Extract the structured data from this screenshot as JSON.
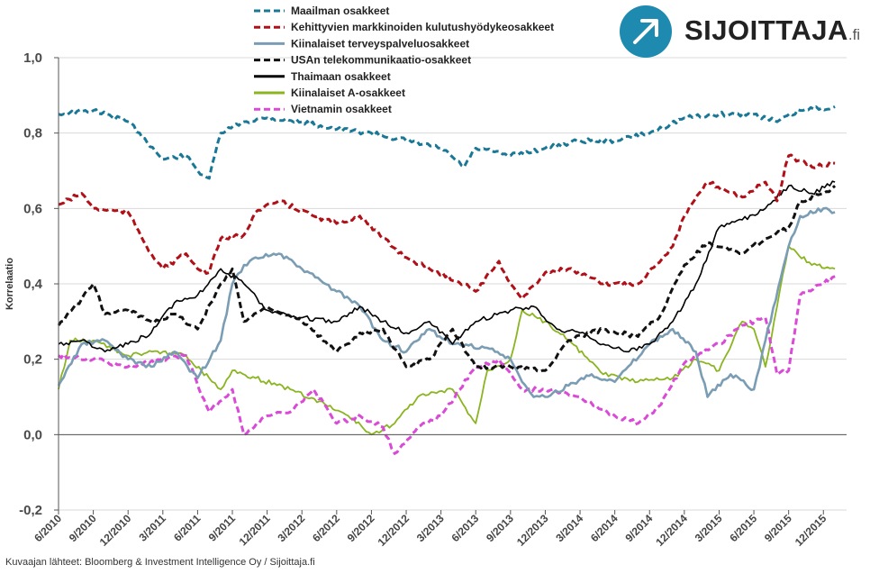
{
  "logo": {
    "name": "SIJOITTAJA",
    "suffix": ".fi",
    "icon": "arrow-up-right-icon"
  },
  "source": "Kuvaajan lähteet: Bloomberg & Investment Intelligence Oy / Sijoittaja.fi",
  "chart_data": {
    "type": "line",
    "ylabel": "Korrelaatio",
    "ylim": [
      -0.2,
      1.0
    ],
    "yticks": [
      "1,0",
      "0,8",
      "0,6",
      "0,4",
      "0,2",
      "0,0",
      "-0,2"
    ],
    "ytick_values": [
      1.0,
      0.8,
      0.6,
      0.4,
      0.2,
      0.0,
      -0.2
    ],
    "xlim": [
      "2010-06",
      "2016-02"
    ],
    "xticks": [
      "6/2010",
      "9/2010",
      "12/2010",
      "3/2011",
      "6/2011",
      "9/2011",
      "12/2011",
      "3/2012",
      "6/2012",
      "9/2012",
      "12/2012",
      "3/2013",
      "6/2013",
      "9/2013",
      "12/2013",
      "3/2014",
      "6/2014",
      "9/2014",
      "12/2014",
      "3/2015",
      "6/2015",
      "9/2015",
      "12/2015"
    ],
    "grid": "horizontal",
    "legend_position": "top-center",
    "series": [
      {
        "name": "Maailman osakkeet",
        "color": "#1a7896",
        "dash": "dashed",
        "width": 3.0,
        "points": [
          [
            "2010-06",
            0.85
          ],
          [
            "2010-09",
            0.86
          ],
          [
            "2010-12",
            0.83
          ],
          [
            "2011-01",
            0.8
          ],
          [
            "2011-03",
            0.73
          ],
          [
            "2011-05",
            0.74
          ],
          [
            "2011-06",
            0.7
          ],
          [
            "2011-07",
            0.68
          ],
          [
            "2011-08",
            0.8
          ],
          [
            "2011-10",
            0.83
          ],
          [
            "2011-12",
            0.84
          ],
          [
            "2012-03",
            0.83
          ],
          [
            "2012-06",
            0.81
          ],
          [
            "2012-09",
            0.8
          ],
          [
            "2012-12",
            0.78
          ],
          [
            "2013-03",
            0.76
          ],
          [
            "2013-05",
            0.71
          ],
          [
            "2013-06",
            0.76
          ],
          [
            "2013-09",
            0.74
          ],
          [
            "2013-12",
            0.76
          ],
          [
            "2014-03",
            0.78
          ],
          [
            "2014-06",
            0.78
          ],
          [
            "2014-09",
            0.8
          ],
          [
            "2014-12",
            0.84
          ],
          [
            "2015-03",
            0.85
          ],
          [
            "2015-06",
            0.85
          ],
          [
            "2015-08",
            0.83
          ],
          [
            "2015-10",
            0.86
          ],
          [
            "2016-01",
            0.87
          ]
        ]
      },
      {
        "name": "Kehittyvien markkinoiden kulutushyödykeosakkeet",
        "color": "#b01018",
        "dash": "dashed",
        "width": 3.0,
        "points": [
          [
            "2010-06",
            0.61
          ],
          [
            "2010-08",
            0.64
          ],
          [
            "2010-09",
            0.6
          ],
          [
            "2010-12",
            0.59
          ],
          [
            "2011-02",
            0.48
          ],
          [
            "2011-03",
            0.44
          ],
          [
            "2011-05",
            0.48
          ],
          [
            "2011-06",
            0.44
          ],
          [
            "2011-07",
            0.43
          ],
          [
            "2011-08",
            0.52
          ],
          [
            "2011-10",
            0.53
          ],
          [
            "2011-11",
            0.59
          ],
          [
            "2012-01",
            0.62
          ],
          [
            "2012-04",
            0.58
          ],
          [
            "2012-06",
            0.56
          ],
          [
            "2012-08",
            0.58
          ],
          [
            "2012-10",
            0.52
          ],
          [
            "2012-12",
            0.47
          ],
          [
            "2013-02",
            0.44
          ],
          [
            "2013-05",
            0.4
          ],
          [
            "2013-06",
            0.38
          ],
          [
            "2013-08",
            0.46
          ],
          [
            "2013-09",
            0.4
          ],
          [
            "2013-10",
            0.36
          ],
          [
            "2013-12",
            0.43
          ],
          [
            "2014-02",
            0.44
          ],
          [
            "2014-05",
            0.4
          ],
          [
            "2014-08",
            0.4
          ],
          [
            "2014-11",
            0.5
          ],
          [
            "2014-12",
            0.58
          ],
          [
            "2015-02",
            0.67
          ],
          [
            "2015-05",
            0.63
          ],
          [
            "2015-07",
            0.67
          ],
          [
            "2015-08",
            0.62
          ],
          [
            "2015-09",
            0.74
          ],
          [
            "2015-11",
            0.71
          ],
          [
            "2016-01",
            0.72
          ]
        ]
      },
      {
        "name": "Kiinalaiset terveyspalveluosakkeet",
        "color": "#7a9db4",
        "dash": "solid",
        "width": 2.6,
        "points": [
          [
            "2010-06",
            0.13
          ],
          [
            "2010-08",
            0.24
          ],
          [
            "2010-10",
            0.25
          ],
          [
            "2010-12",
            0.2
          ],
          [
            "2011-02",
            0.18
          ],
          [
            "2011-04",
            0.22
          ],
          [
            "2011-06",
            0.15
          ],
          [
            "2011-08",
            0.25
          ],
          [
            "2011-09",
            0.4
          ],
          [
            "2011-10",
            0.45
          ],
          [
            "2011-11",
            0.47
          ],
          [
            "2012-01",
            0.48
          ],
          [
            "2012-03",
            0.44
          ],
          [
            "2012-06",
            0.38
          ],
          [
            "2012-08",
            0.34
          ],
          [
            "2012-10",
            0.25
          ],
          [
            "2012-12",
            0.22
          ],
          [
            "2013-02",
            0.28
          ],
          [
            "2013-04",
            0.24
          ],
          [
            "2013-07",
            0.23
          ],
          [
            "2013-09",
            0.2
          ],
          [
            "2013-10",
            0.14
          ],
          [
            "2013-11",
            0.1
          ],
          [
            "2013-12",
            0.1
          ],
          [
            "2014-02",
            0.13
          ],
          [
            "2014-04",
            0.16
          ],
          [
            "2014-06",
            0.14
          ],
          [
            "2014-09",
            0.24
          ],
          [
            "2014-11",
            0.28
          ],
          [
            "2015-01",
            0.22
          ],
          [
            "2015-02",
            0.1
          ],
          [
            "2015-04",
            0.16
          ],
          [
            "2015-06",
            0.12
          ],
          [
            "2015-07",
            0.25
          ],
          [
            "2015-09",
            0.5
          ],
          [
            "2015-10",
            0.58
          ],
          [
            "2015-12",
            0.6
          ],
          [
            "2016-01",
            0.59
          ]
        ]
      },
      {
        "name": "USAn telekommunikaatio-osakkeet",
        "color": "#111111",
        "dash": "dashed",
        "width": 3.0,
        "points": [
          [
            "2010-06",
            0.29
          ],
          [
            "2010-08",
            0.36
          ],
          [
            "2010-09",
            0.4
          ],
          [
            "2010-10",
            0.32
          ],
          [
            "2010-12",
            0.33
          ],
          [
            "2011-02",
            0.3
          ],
          [
            "2011-04",
            0.32
          ],
          [
            "2011-06",
            0.28
          ],
          [
            "2011-08",
            0.4
          ],
          [
            "2011-09",
            0.44
          ],
          [
            "2011-10",
            0.3
          ],
          [
            "2011-12",
            0.34
          ],
          [
            "2012-03",
            0.3
          ],
          [
            "2012-06",
            0.22
          ],
          [
            "2012-08",
            0.27
          ],
          [
            "2012-10",
            0.28
          ],
          [
            "2012-12",
            0.18
          ],
          [
            "2013-02",
            0.2
          ],
          [
            "2013-04",
            0.28
          ],
          [
            "2013-06",
            0.18
          ],
          [
            "2013-09",
            0.18
          ],
          [
            "2013-12",
            0.17
          ],
          [
            "2014-02",
            0.25
          ],
          [
            "2014-05",
            0.28
          ],
          [
            "2014-08",
            0.26
          ],
          [
            "2014-10",
            0.32
          ],
          [
            "2014-12",
            0.45
          ],
          [
            "2015-02",
            0.51
          ],
          [
            "2015-05",
            0.48
          ],
          [
            "2015-07",
            0.52
          ],
          [
            "2015-09",
            0.55
          ],
          [
            "2015-10",
            0.62
          ],
          [
            "2015-12",
            0.64
          ],
          [
            "2016-01",
            0.66
          ]
        ]
      },
      {
        "name": "Thaimaan osakkeet",
        "color": "#000000",
        "dash": "solid",
        "width": 1.6,
        "points": [
          [
            "2010-06",
            0.24
          ],
          [
            "2010-08",
            0.25
          ],
          [
            "2010-10",
            0.22
          ],
          [
            "2010-12",
            0.24
          ],
          [
            "2011-02",
            0.27
          ],
          [
            "2011-04",
            0.35
          ],
          [
            "2011-06",
            0.37
          ],
          [
            "2011-08",
            0.44
          ],
          [
            "2011-10",
            0.4
          ],
          [
            "2011-12",
            0.33
          ],
          [
            "2012-03",
            0.31
          ],
          [
            "2012-06",
            0.3
          ],
          [
            "2012-08",
            0.34
          ],
          [
            "2012-10",
            0.3
          ],
          [
            "2012-12",
            0.27
          ],
          [
            "2013-02",
            0.3
          ],
          [
            "2013-04",
            0.24
          ],
          [
            "2013-06",
            0.3
          ],
          [
            "2013-09",
            0.33
          ],
          [
            "2013-11",
            0.34
          ],
          [
            "2014-01",
            0.28
          ],
          [
            "2014-03",
            0.27
          ],
          [
            "2014-05",
            0.24
          ],
          [
            "2014-07",
            0.22
          ],
          [
            "2014-09",
            0.24
          ],
          [
            "2014-11",
            0.3
          ],
          [
            "2015-01",
            0.4
          ],
          [
            "2015-03",
            0.55
          ],
          [
            "2015-05",
            0.57
          ],
          [
            "2015-07",
            0.6
          ],
          [
            "2015-09",
            0.66
          ],
          [
            "2015-11",
            0.64
          ],
          [
            "2016-01",
            0.67
          ]
        ]
      },
      {
        "name": "Kiinalaiset A-osakkeet",
        "color": "#8ab420",
        "dash": "solid",
        "width": 1.8,
        "points": [
          [
            "2010-06",
            0.12
          ],
          [
            "2010-07",
            0.25
          ],
          [
            "2010-09",
            0.25
          ],
          [
            "2010-12",
            0.21
          ],
          [
            "2011-03",
            0.22
          ],
          [
            "2011-05",
            0.21
          ],
          [
            "2011-07",
            0.15
          ],
          [
            "2011-08",
            0.12
          ],
          [
            "2011-09",
            0.17
          ],
          [
            "2011-11",
            0.15
          ],
          [
            "2012-02",
            0.12
          ],
          [
            "2012-05",
            0.08
          ],
          [
            "2012-07",
            0.05
          ],
          [
            "2012-09",
            0.0
          ],
          [
            "2012-11",
            0.03
          ],
          [
            "2013-01",
            0.1
          ],
          [
            "2013-04",
            0.12
          ],
          [
            "2013-06",
            0.03
          ],
          [
            "2013-07",
            0.17
          ],
          [
            "2013-09",
            0.2
          ],
          [
            "2013-10",
            0.33
          ],
          [
            "2013-12",
            0.3
          ],
          [
            "2014-02",
            0.25
          ],
          [
            "2014-05",
            0.16
          ],
          [
            "2014-08",
            0.14
          ],
          [
            "2014-11",
            0.15
          ],
          [
            "2015-01",
            0.2
          ],
          [
            "2015-03",
            0.17
          ],
          [
            "2015-05",
            0.3
          ],
          [
            "2015-06",
            0.28
          ],
          [
            "2015-07",
            0.18
          ],
          [
            "2015-08",
            0.34
          ],
          [
            "2015-09",
            0.5
          ],
          [
            "2015-11",
            0.45
          ],
          [
            "2016-01",
            0.44
          ]
        ]
      },
      {
        "name": "Vietnamin osakkeet",
        "color": "#d94ad6",
        "dash": "dashed",
        "width": 3.0,
        "points": [
          [
            "2010-06",
            0.21
          ],
          [
            "2010-09",
            0.2
          ],
          [
            "2010-12",
            0.18
          ],
          [
            "2011-03",
            0.2
          ],
          [
            "2011-05",
            0.21
          ],
          [
            "2011-07",
            0.06
          ],
          [
            "2011-09",
            0.12
          ],
          [
            "2011-10",
            0.0
          ],
          [
            "2011-12",
            0.05
          ],
          [
            "2012-02",
            0.06
          ],
          [
            "2012-04",
            0.12
          ],
          [
            "2012-06",
            0.03
          ],
          [
            "2012-08",
            0.05
          ],
          [
            "2012-10",
            0.02
          ],
          [
            "2012-11",
            -0.05
          ],
          [
            "2013-01",
            0.02
          ],
          [
            "2013-03",
            0.05
          ],
          [
            "2013-06",
            0.18
          ],
          [
            "2013-08",
            0.2
          ],
          [
            "2013-10",
            0.12
          ],
          [
            "2013-12",
            0.12
          ],
          [
            "2014-03",
            0.1
          ],
          [
            "2014-06",
            0.05
          ],
          [
            "2014-08",
            0.03
          ],
          [
            "2014-10",
            0.08
          ],
          [
            "2014-12",
            0.19
          ],
          [
            "2015-03",
            0.24
          ],
          [
            "2015-05",
            0.29
          ],
          [
            "2015-07",
            0.31
          ],
          [
            "2015-08",
            0.16
          ],
          [
            "2015-09",
            0.17
          ],
          [
            "2015-10",
            0.37
          ],
          [
            "2015-12",
            0.4
          ],
          [
            "2016-01",
            0.42
          ]
        ]
      }
    ]
  }
}
